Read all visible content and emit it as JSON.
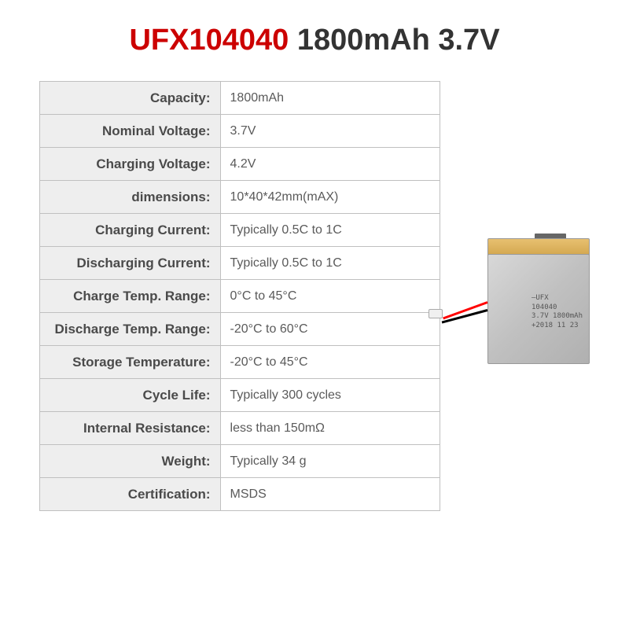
{
  "title": {
    "part1": "UFX104040 ",
    "part2": "1800mAh 3.7V",
    "color_part1": "#cc0000",
    "color_part2": "#333333"
  },
  "specs": [
    {
      "label": "Capacity:",
      "value": "1800mAh"
    },
    {
      "label": "Nominal Voltage:",
      "value": "3.7V"
    },
    {
      "label": "Charging Voltage:",
      "value": "4.2V"
    },
    {
      "label": "dimensions:",
      "value": "10*40*42mm(mAX)"
    },
    {
      "label": "Charging Current:",
      "value": "Typically 0.5C to 1C"
    },
    {
      "label": "Discharging Current:",
      "value": "Typically 0.5C to 1C"
    },
    {
      "label": "Charge Temp. Range:",
      "value": "0°C to 45°C"
    },
    {
      "label": "Discharge Temp. Range:",
      "value": "-20°C to 60°C"
    },
    {
      "label": "Storage Temperature:",
      "value": "-20°C to 45°C"
    },
    {
      "label": "Cycle Life:",
      "value": "Typically 300 cycles"
    },
    {
      "label": "Internal Resistance:",
      "value": "less than 150mΩ"
    },
    {
      "label": "Weight:",
      "value": "Typically 34 g"
    },
    {
      "label": "Certification:",
      "value": "MSDS"
    }
  ],
  "battery_label": {
    "line1": "—UFX",
    "line2": "104040",
    "line3": "3.7V 1800mAh",
    "line4": "+2018 11 23"
  },
  "colors": {
    "table_border": "#c0c0c0",
    "label_bg": "#eeeeee",
    "label_text": "#4a4a4a",
    "value_text": "#5a5a5a",
    "battery_gold": "#d4a850",
    "battery_silver": "#c0c0c0"
  }
}
